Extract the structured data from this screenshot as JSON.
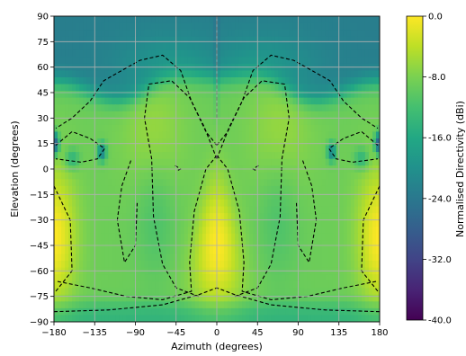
{
  "chart_data": {
    "type": "heatmap",
    "title": "",
    "xlabel": "Azimuth (degrees)",
    "ylabel": "Elevation (degrees)",
    "colorbar_label": "Normalised Directivity (dBi)",
    "xlim": [
      -180,
      180
    ],
    "ylim": [
      -90,
      90
    ],
    "x_ticks": [
      -180,
      -135,
      -90,
      -45,
      0,
      45,
      90,
      135,
      180
    ],
    "x_tick_labels": [
      "−180",
      "−135",
      "−90",
      "−45",
      "0",
      "45",
      "90",
      "135",
      "180"
    ],
    "y_ticks": [
      90,
      75,
      60,
      45,
      30,
      15,
      0,
      -15,
      -30,
      -45,
      -60,
      -75,
      -90
    ],
    "y_tick_labels": [
      "90",
      "75",
      "60",
      "45",
      "30",
      "15",
      "0",
      "−15",
      "−30",
      "−45",
      "−60",
      "−75",
      "−90"
    ],
    "colorbar_ticks": [
      0,
      -8,
      -16,
      -24,
      -32,
      -40
    ],
    "colorbar_tick_labels": [
      "0.0",
      "-8.0",
      "-16.0",
      "-24.0",
      "-32.0",
      "-40.0"
    ],
    "colorbar_range": [
      -40,
      0
    ],
    "colormap": "viridis",
    "grid": true,
    "contour_style": "dashed black",
    "colors": {
      "cmap_stops": [
        "#440154",
        "#482475",
        "#414487",
        "#355f8d",
        "#2a788e",
        "#21918c",
        "#22a884",
        "#44bf70",
        "#7ad151",
        "#bddf26",
        "#fde725"
      ],
      "grid": "#b0b0b0",
      "contour": "#000000"
    }
  }
}
